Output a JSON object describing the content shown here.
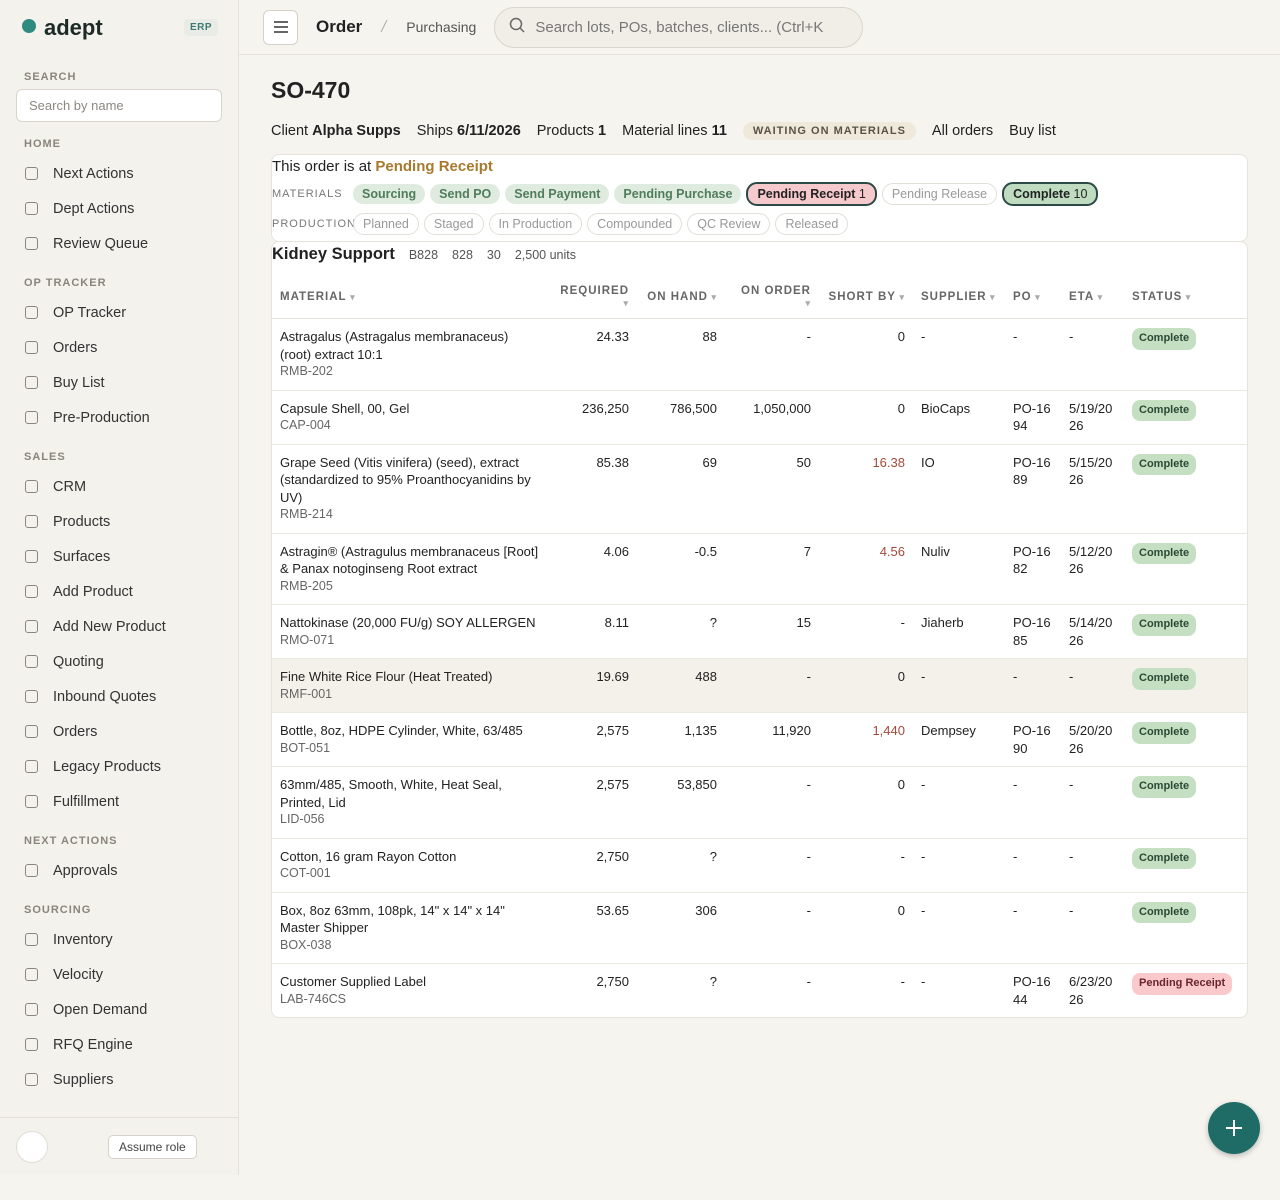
{
  "sidebar": {
    "brand": "adept",
    "badge": "ERP",
    "search_label": "SEARCH",
    "search_placeholder": "Search by name",
    "sections": [
      {
        "title": "HOME",
        "items": [
          "Next Actions",
          "Dept Actions",
          "Review Queue"
        ]
      },
      {
        "title": "OP TRACKER",
        "items": [
          "OP Tracker",
          "Orders",
          "Buy List",
          "Pre-Production"
        ]
      },
      {
        "title": "SALES",
        "items": [
          "CRM",
          "Products",
          "Surfaces",
          "Add Product",
          "Add New Product",
          "Quoting",
          "Inbound Quotes",
          "Orders",
          "Legacy Products",
          "Fulfillment"
        ]
      },
      {
        "title": "NEXT ACTIONS",
        "items": [
          "Approvals"
        ]
      },
      {
        "title": "SOURCING",
        "items": [
          "Inventory",
          "Velocity",
          "Open Demand",
          "RFQ Engine",
          "Suppliers"
        ]
      }
    ],
    "assume_role": "Assume role"
  },
  "topbar": {
    "breadcrumb": [
      "Order",
      "Purchasing"
    ],
    "search_placeholder": "Search lots, POs, batches, clients...  (Ctrl+K"
  },
  "order": {
    "title": "SO-470",
    "meta": [
      {
        "label": "Client",
        "value": "Alpha Supps"
      },
      {
        "label": "Ships",
        "value": "6/11/2026"
      },
      {
        "label": "Products",
        "value": "1"
      },
      {
        "label": "Material lines",
        "value": "11"
      }
    ],
    "status": "WAITING ON MATERIALS",
    "links": [
      "All orders",
      "Buy list"
    ]
  },
  "stage": {
    "prefix": "This order is at",
    "current": "Pending Receipt",
    "tracks": [
      {
        "label": "MATERIALS",
        "steps": [
          {
            "label": "Sourcing",
            "state": "done"
          },
          {
            "label": "Send PO",
            "state": "done"
          },
          {
            "label": "Send Payment",
            "state": "done"
          },
          {
            "label": "Pending Purchase",
            "state": "done"
          },
          {
            "label": "Pending Receipt",
            "count": 1,
            "state": "active"
          },
          {
            "label": "Pending Release",
            "state": "todo"
          },
          {
            "label": "Complete",
            "count": 10,
            "state": "complete"
          }
        ]
      },
      {
        "label": "PRODUCTION",
        "steps": [
          {
            "label": "Planned",
            "state": "todo"
          },
          {
            "label": "Staged",
            "state": "todo"
          },
          {
            "label": "In Production",
            "state": "todo"
          },
          {
            "label": "Compounded",
            "state": "todo"
          },
          {
            "label": "QC Review",
            "state": "todo"
          },
          {
            "label": "Released",
            "state": "todo"
          }
        ]
      }
    ]
  },
  "product": {
    "name": "Kidney Support",
    "tags": [
      "B828",
      "828",
      "30",
      "2,500 units"
    ]
  },
  "table": {
    "headers": [
      "MATERIAL",
      "REQUIRED",
      "ON HAND",
      "ON ORDER",
      "SHORT BY",
      "SUPPLIER",
      "PO",
      "ETA",
      "STATUS"
    ],
    "rows": [
      [
        "Astragalus (Astragalus membranaceus) (root) extract 10:1",
        "RMB-202",
        "24.33",
        "88",
        "-",
        "0",
        "-",
        "-",
        "-",
        "Complete"
      ],
      [
        "Capsule Shell, 00, Gel",
        "CAP-004",
        "236,250",
        "786,500",
        "1,050,000",
        "0",
        "BioCaps",
        "PO-1694",
        "5/19/2026",
        "Complete"
      ],
      [
        "Grape Seed (Vitis vinifera) (seed), extract (standardized to 95% Proanthocyanidins by UV)",
        "RMB-214",
        "85.38",
        "69",
        "50",
        "16.38",
        "IO",
        "PO-1689",
        "5/15/2026",
        "Complete"
      ],
      [
        "Astragin® (Astragulus membranaceus [Root] & Panax notoginseng Root extract",
        "RMB-205",
        "4.06",
        "-0.5",
        "7",
        "4.56",
        "Nuliv",
        "PO-1682",
        "5/12/2026",
        "Complete"
      ],
      [
        "Nattokinase (20,000 FU/g) SOY ALLERGEN",
        "RMO-071",
        "8.11",
        "?",
        "15",
        "-",
        "Jiaherb",
        "PO-1685",
        "5/14/2026",
        "Complete"
      ],
      [
        "Fine White Rice Flour (Heat Treated)",
        "RMF-001",
        "19.69",
        "488",
        "-",
        "0",
        "-",
        "-",
        "-",
        "Complete"
      ],
      [
        "Bottle, 8oz, HDPE Cylinder, White, 63/485",
        "BOT-051",
        "2,575",
        "1,135",
        "11,920",
        "1,440",
        "Dempsey",
        "PO-1690",
        "5/20/2026",
        "Complete"
      ],
      [
        "63mm/485, Smooth, White, Heat Seal, Printed, Lid",
        "LID-056",
        "2,575",
        "53,850",
        "-",
        "0",
        "-",
        "-",
        "-",
        "Complete"
      ],
      [
        "Cotton, 16 gram Rayon Cotton",
        "COT-001",
        "2,750",
        "?",
        "-",
        "-",
        "-",
        "-",
        "-",
        "Complete"
      ],
      [
        "Box, 8oz 63mm, 108pk, 14\" x 14\" x 14\" Master Shipper",
        "BOX-038",
        "53.65",
        "306",
        "-",
        "0",
        "-",
        "-",
        "-",
        "Complete"
      ],
      [
        "Customer Supplied Label",
        "LAB-746CS",
        "2,750",
        "?",
        "-",
        "-",
        "-",
        "PO-1644",
        "6/23/2026",
        "Pending Receipt"
      ]
    ]
  }
}
